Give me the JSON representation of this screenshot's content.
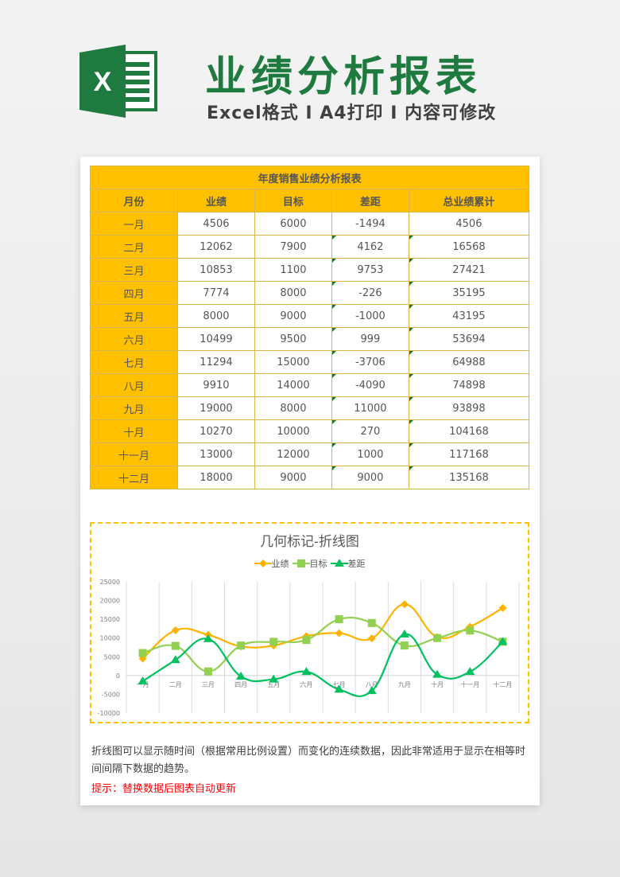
{
  "header": {
    "title": "业绩分析报表",
    "subtitle": "Excel格式 I A4打印 I 内容可修改",
    "logo_icon": "excel-icon",
    "logo_letter": "X"
  },
  "table": {
    "title": "年度销售业绩分析报表",
    "columns": [
      "月份",
      "业绩",
      "目标",
      "差距",
      "总业绩累计"
    ],
    "rows": [
      [
        "一月",
        "4506",
        "6000",
        "-1494",
        "4506"
      ],
      [
        "二月",
        "12062",
        "7900",
        "4162",
        "16568"
      ],
      [
        "三月",
        "10853",
        "1100",
        "9753",
        "27421"
      ],
      [
        "四月",
        "7774",
        "8000",
        "-226",
        "35195"
      ],
      [
        "五月",
        "8000",
        "9000",
        "-1000",
        "43195"
      ],
      [
        "六月",
        "10499",
        "9500",
        "999",
        "53694"
      ],
      [
        "七月",
        "11294",
        "15000",
        "-3706",
        "64988"
      ],
      [
        "八月",
        "9910",
        "14000",
        "-4090",
        "74898"
      ],
      [
        "九月",
        "19000",
        "8000",
        "11000",
        "93898"
      ],
      [
        "十月",
        "10270",
        "10000",
        "270",
        "104168"
      ],
      [
        "十一月",
        "13000",
        "12000",
        "1000",
        "117168"
      ],
      [
        "十二月",
        "18000",
        "9000",
        "9000",
        "135168"
      ]
    ]
  },
  "colors": {
    "brand_green": "#1e7a3f",
    "header_yellow": "#ffc000",
    "series_performance": "#ffb300",
    "series_target": "#92d050",
    "series_gap": "#00c060",
    "tip_red": "#ff0000"
  },
  "chart_data": {
    "type": "line",
    "title": "几何标记-折线图",
    "categories": [
      "一月",
      "二月",
      "三月",
      "四月",
      "五月",
      "六月",
      "七月",
      "八月",
      "九月",
      "十月",
      "十一月",
      "十二月"
    ],
    "series": [
      {
        "name": "业绩",
        "marker": "diamond",
        "values": [
          4506,
          12062,
          10853,
          7774,
          8000,
          10499,
          11294,
          9910,
          19000,
          10270,
          13000,
          18000
        ]
      },
      {
        "name": "目标",
        "marker": "square",
        "values": [
          6000,
          7900,
          1100,
          8000,
          9000,
          9500,
          15000,
          14000,
          8000,
          10000,
          12000,
          9000
        ]
      },
      {
        "name": "差距",
        "marker": "triangle",
        "values": [
          -1494,
          4162,
          9753,
          -226,
          -1000,
          999,
          -3706,
          -4090,
          11000,
          270,
          1000,
          9000
        ]
      }
    ],
    "yticks": [
      "25000",
      "20000",
      "15000",
      "10000",
      "5000",
      "0",
      "-5000",
      "-10000"
    ],
    "ylim": [
      -10000,
      25000
    ],
    "xlabel": "",
    "ylabel": "",
    "grid": "vertical",
    "legend_position": "top",
    "smooth": true
  },
  "footer": {
    "description": "折线图可以显示随时间（根据常用比例设置）而变化的连续数据，因此非常适用于显示在相等时间间隔下数据的趋势。",
    "tip": "提示：替换数据后图表自动更新"
  }
}
